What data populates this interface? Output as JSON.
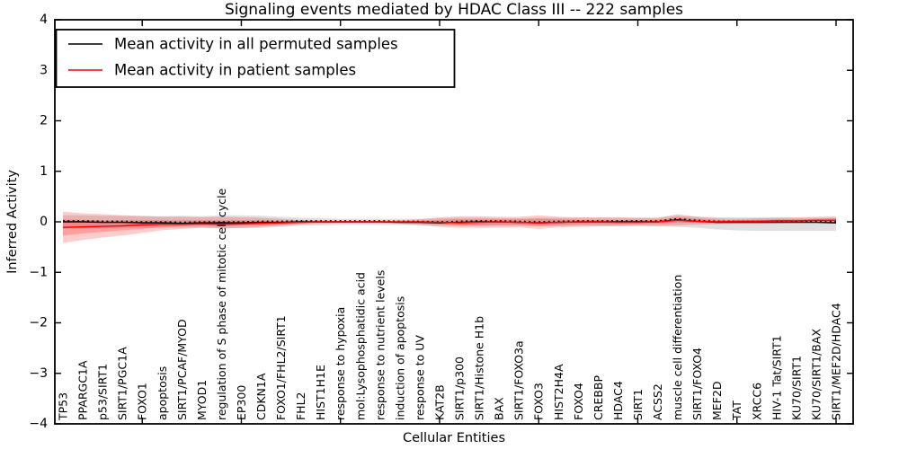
{
  "figure": {
    "title": "Signaling events mediated by HDAC Class III -- 222 samples",
    "xlabel": "Cellular Entities",
    "ylabel": "Inferred Activity"
  },
  "colors": {
    "permuted_line": "#000000",
    "patient_line": "#ff0000",
    "permuted_band": "#000000",
    "patient_band": "#ff0000",
    "axis": "#000000",
    "background": "#ffffff"
  },
  "chart_data": {
    "type": "line",
    "title": "Signaling events mediated by HDAC Class III -- 222 samples",
    "xlabel": "Cellular Entities",
    "ylabel": "Inferred Activity",
    "ylim": [
      -4,
      4
    ],
    "grid": false,
    "ytick_values": [
      4,
      3,
      2,
      1,
      0,
      -1,
      -2,
      -3,
      -4
    ],
    "ytick_labels": [
      "4",
      "3",
      "2",
      "1",
      "0",
      "−1",
      "−2",
      "−3",
      "−4"
    ],
    "top_tick_indices": [
      4,
      9,
      14,
      19,
      24,
      29,
      34,
      39
    ],
    "categories": [
      "TP53",
      "PPARGC1A",
      "p53/SIRT1",
      "SIRT1/PGC1A",
      "FOXO1",
      "apoptosis",
      "SIRT1/PCAF/MYOD",
      "MYOD1",
      "regulation of S phase of mitotic cell cycle",
      "EP300",
      "CDKN1A",
      "FOXO1/FHL2/SIRT1",
      "FHL2",
      "HIST1H1E",
      "response to hypoxia",
      "mol:Lysophosphatidic acid",
      "response to nutrient levels",
      "induction of apoptosis",
      "response to UV",
      "KAT2B",
      "SIRT1/p300",
      "SIRT1/Histone H1b",
      "BAX",
      "SIRT1/FOXO3a",
      "FOXO3",
      "HIST2H4A",
      "FOXO4",
      "CREBBP",
      "HDAC4",
      "SIRT1",
      "ACSS2",
      "muscle cell differentiation",
      "SIRT1/FOXO4",
      "MEF2D",
      "TAT",
      "XRCC6",
      "HIV-1 Tat/SIRT1",
      "KU70/SIRT1",
      "KU70/SIRT1/BAX",
      "SIRT1/MEF2D/HDAC4"
    ],
    "series": [
      {
        "key": "permuted_mean",
        "label": "Mean activity in all permuted samples",
        "color": "#000000",
        "style": "solid",
        "values": [
          0.0,
          0.0,
          -0.01,
          -0.01,
          -0.02,
          -0.02,
          -0.03,
          -0.02,
          -0.02,
          -0.02,
          -0.01,
          -0.01,
          0.0,
          0.0,
          0.0,
          0.0,
          0.0,
          -0.01,
          -0.01,
          -0.02,
          -0.01,
          0.0,
          0.0,
          -0.01,
          -0.02,
          -0.01,
          0.0,
          0.0,
          0.0,
          0.0,
          0.0,
          0.04,
          0.01,
          -0.01,
          -0.01,
          -0.01,
          -0.01,
          -0.01,
          -0.01,
          -0.02
        ]
      },
      {
        "key": "permuted_mean_markers",
        "label": "",
        "color": "#000000",
        "style": "dotted",
        "values": [
          0.02,
          0.02,
          0.01,
          0.01,
          0.0,
          0.0,
          -0.01,
          0.0,
          0.0,
          0.0,
          0.01,
          0.01,
          0.02,
          0.02,
          0.02,
          0.02,
          0.02,
          0.01,
          0.01,
          0.0,
          0.01,
          0.02,
          0.02,
          0.01,
          0.0,
          0.01,
          0.02,
          0.02,
          0.02,
          0.02,
          0.02,
          0.06,
          0.03,
          0.01,
          0.01,
          0.01,
          0.01,
          0.01,
          0.01,
          0.0
        ]
      },
      {
        "key": "patient_mean",
        "label": "Mean activity in patient samples",
        "color": "#ff0000",
        "style": "solid",
        "values": [
          -0.11,
          -0.1,
          -0.09,
          -0.08,
          -0.06,
          -0.05,
          -0.05,
          -0.04,
          -0.05,
          -0.04,
          -0.03,
          -0.02,
          -0.01,
          0.0,
          0.0,
          0.0,
          0.0,
          0.0,
          0.0,
          -0.01,
          -0.02,
          -0.01,
          0.0,
          -0.01,
          -0.02,
          -0.01,
          0.0,
          0.0,
          -0.01,
          -0.01,
          0.0,
          0.03,
          0.01,
          0.0,
          0.01,
          0.01,
          0.02,
          0.02,
          0.03,
          0.03
        ]
      }
    ],
    "bands": [
      {
        "key": "permuted_std",
        "color": "#000000",
        "opacity": 0.12,
        "upper": [
          0.13,
          0.13,
          0.12,
          0.12,
          0.12,
          0.11,
          0.12,
          0.11,
          0.13,
          0.13,
          0.12,
          0.1,
          0.08,
          0.07,
          0.06,
          0.06,
          0.06,
          0.06,
          0.06,
          0.07,
          0.08,
          0.08,
          0.07,
          0.07,
          0.08,
          0.08,
          0.08,
          0.08,
          0.08,
          0.08,
          0.08,
          0.12,
          0.1,
          0.09,
          0.09,
          0.09,
          0.09,
          0.08,
          0.08,
          0.08
        ],
        "lower": [
          -0.14,
          -0.13,
          -0.13,
          -0.12,
          -0.12,
          -0.11,
          -0.12,
          -0.11,
          -0.13,
          -0.13,
          -0.12,
          -0.1,
          -0.08,
          -0.07,
          -0.06,
          -0.06,
          -0.06,
          -0.06,
          -0.07,
          -0.08,
          -0.08,
          -0.08,
          -0.08,
          -0.08,
          -0.09,
          -0.09,
          -0.08,
          -0.08,
          -0.08,
          -0.08,
          -0.09,
          -0.1,
          -0.12,
          -0.15,
          -0.17,
          -0.18,
          -0.18,
          -0.18,
          -0.18,
          -0.18
        ]
      },
      {
        "key": "patient_std_outer",
        "color": "#ff0000",
        "opacity": 0.2,
        "upper": [
          0.2,
          0.17,
          0.15,
          0.13,
          0.11,
          0.1,
          0.1,
          0.09,
          0.1,
          0.09,
          0.08,
          0.06,
          0.04,
          0.03,
          0.02,
          0.02,
          0.02,
          0.03,
          0.05,
          0.09,
          0.11,
          0.11,
          0.1,
          0.1,
          0.13,
          0.1,
          0.09,
          0.09,
          0.09,
          0.08,
          0.08,
          0.15,
          0.1,
          0.07,
          0.06,
          0.07,
          0.08,
          0.09,
          0.1,
          0.11
        ],
        "lower": [
          -0.42,
          -0.36,
          -0.31,
          -0.27,
          -0.22,
          -0.17,
          -0.14,
          -0.12,
          -0.13,
          -0.12,
          -0.1,
          -0.08,
          -0.05,
          -0.04,
          -0.03,
          -0.03,
          -0.03,
          -0.04,
          -0.06,
          -0.1,
          -0.12,
          -0.12,
          -0.11,
          -0.11,
          -0.14,
          -0.11,
          -0.1,
          -0.09,
          -0.09,
          -0.08,
          -0.08,
          -0.07,
          -0.06,
          -0.05,
          -0.04,
          -0.04,
          -0.03,
          -0.02,
          -0.02,
          -0.02
        ]
      },
      {
        "key": "patient_std_inner",
        "color": "#ff0000",
        "opacity": 0.22,
        "upper": [
          0.05,
          0.04,
          0.03,
          0.03,
          0.03,
          0.03,
          0.03,
          0.03,
          0.03,
          0.03,
          0.03,
          0.02,
          0.02,
          0.01,
          0.01,
          0.01,
          0.01,
          0.01,
          0.02,
          0.04,
          0.05,
          0.05,
          0.05,
          0.05,
          0.06,
          0.05,
          0.04,
          0.04,
          0.04,
          0.04,
          0.04,
          0.09,
          0.06,
          0.04,
          0.03,
          0.04,
          0.05,
          0.05,
          0.06,
          0.07
        ],
        "lower": [
          -0.27,
          -0.23,
          -0.2,
          -0.17,
          -0.14,
          -0.11,
          -0.09,
          -0.08,
          -0.09,
          -0.08,
          -0.07,
          -0.05,
          -0.03,
          -0.02,
          -0.02,
          -0.02,
          -0.02,
          -0.02,
          -0.03,
          -0.05,
          -0.07,
          -0.07,
          -0.06,
          -0.06,
          -0.08,
          -0.06,
          -0.05,
          -0.05,
          -0.05,
          -0.04,
          -0.04,
          -0.02,
          -0.02,
          -0.03,
          -0.02,
          -0.02,
          -0.01,
          -0.01,
          0.0,
          0.0
        ]
      }
    ],
    "legend": {
      "position": "upper left",
      "entries": [
        {
          "label": "Mean activity in all permuted samples",
          "color": "#000000"
        },
        {
          "label": "Mean activity in patient samples",
          "color": "#ff0000"
        }
      ]
    }
  }
}
